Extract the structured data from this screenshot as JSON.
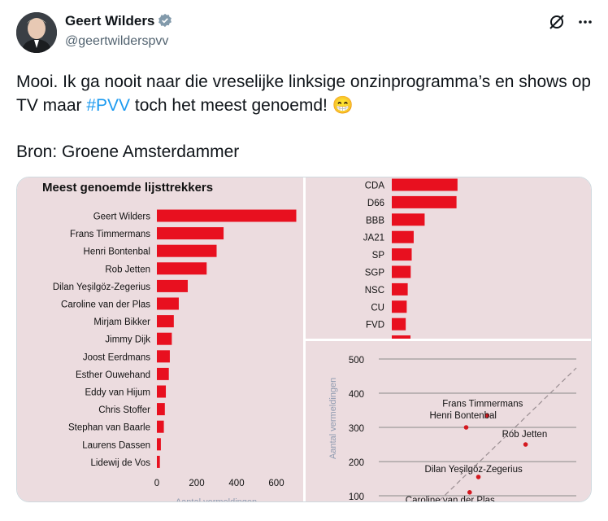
{
  "author": {
    "name": "Geert Wilders",
    "handle": "@geertwilderspvv"
  },
  "icons": {
    "verified": "verified-badge-icon",
    "grok": "grok-icon",
    "more": "more-icon"
  },
  "tweet": {
    "part1": "Mooi. Ik ga nooit naar die vreselijke linksige onzinprogramma’s en shows op TV maar ",
    "hashtag": "#PVV",
    "part2": " toch het meest genoemd! ",
    "emoji": "😁"
  },
  "source": "Bron: Groene Amsterdammer",
  "colors": {
    "bar": "#e8101f",
    "panel": "#ecdcdf",
    "hashtag": "#1d9bf0",
    "dot": "#d41920"
  },
  "chart_data": [
    {
      "type": "bar",
      "title": "Meest genoemde lijsttrekkers",
      "orientation": "horizontal",
      "categories": [
        "Geert Wilders",
        "Frans Timmermans",
        "Henri Bontenbal",
        "Rob Jetten",
        "Dilan Yeşilgöz-Zegerius",
        "Caroline van der Plas",
        "Mirjam Bikker",
        "Jimmy Dijk",
        "Joost Eerdmans",
        "Esther Ouwehand",
        "Eddy van Hijum",
        "Chris Stoffer",
        "Stephan van Baarle",
        "Laurens Dassen",
        "Lidewij de Vos"
      ],
      "values": [
        700,
        335,
        300,
        250,
        155,
        110,
        85,
        75,
        65,
        60,
        45,
        40,
        35,
        20,
        15
      ],
      "xticks": [
        0,
        200,
        400,
        600
      ],
      "xlim": [
        0,
        720
      ],
      "xlabel": "Aantal vermeldingen"
    },
    {
      "type": "bar",
      "orientation": "horizontal",
      "categories": [
        "CDA",
        "D66",
        "BBB",
        "JA21",
        "SP",
        "SGP",
        "NSC",
        "CU",
        "FVD"
      ],
      "values": [
        330,
        325,
        165,
        110,
        100,
        95,
        80,
        75,
        70
      ],
      "xlim": [
        0,
        720
      ]
    },
    {
      "type": "scatter",
      "ylabel": "Aantal vermeldingen",
      "yticks": [
        100,
        200,
        300,
        400,
        500
      ],
      "ylim": [
        100,
        510
      ],
      "points": [
        {
          "label": "Frans Timmermans",
          "x": 0.62,
          "y": 335
        },
        {
          "label": "Henri Bontenbal",
          "x": 0.5,
          "y": 300
        },
        {
          "label": "Rob Jetten",
          "x": 0.84,
          "y": 250
        },
        {
          "label": "Dilan Yeşilgöz-Zegerius",
          "x": 0.57,
          "y": 155
        },
        {
          "label": "Caroline van der Plas",
          "x": 0.52,
          "y": 110
        }
      ]
    }
  ]
}
